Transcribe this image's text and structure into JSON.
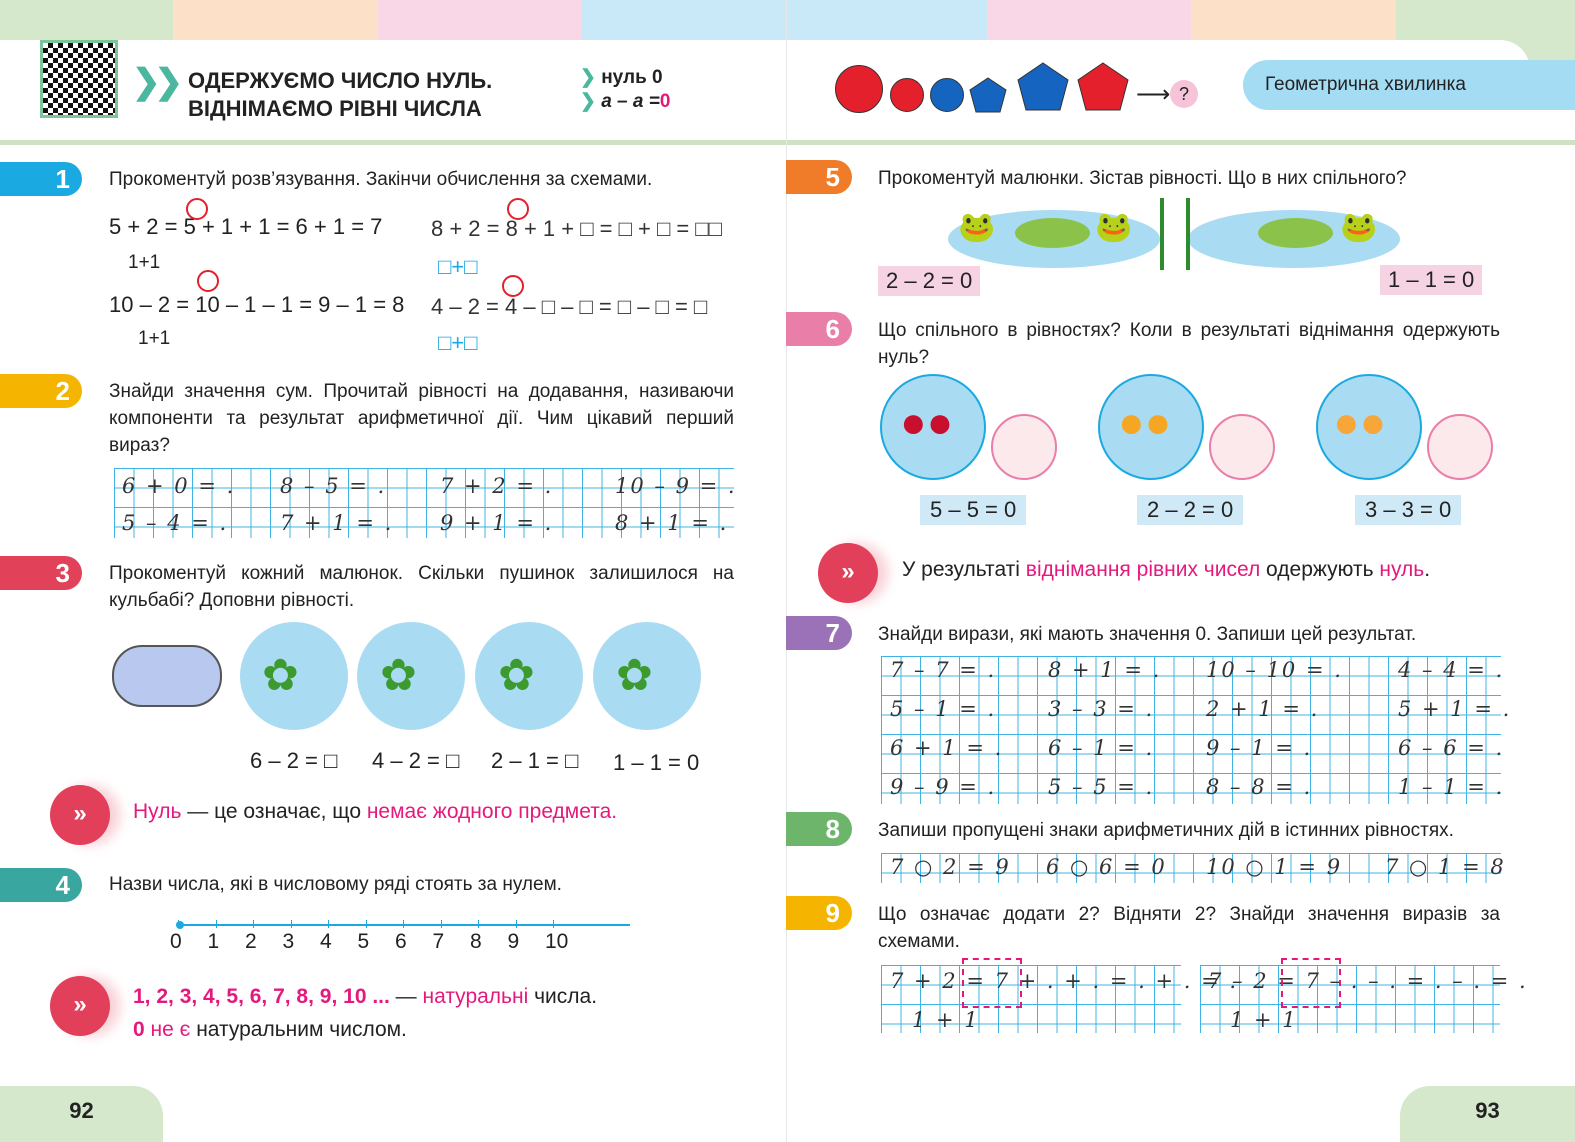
{
  "colors": {
    "magenta": "#e5197d",
    "blue": "#1aa9e1",
    "grid": "#3fb3e5",
    "red": "#e4202c"
  },
  "left_page": {
    "header": {
      "title_line1": "ОДЕРЖУЄМО ЧИСЛО НУЛЬ.",
      "title_line2": "ВІДНІМАЄМО РІВНІ ЧИСЛА",
      "key1": "нуль 0",
      "key2_prefix": "a – a =",
      "key2_value": "0"
    },
    "ex1": {
      "num": "1",
      "text": "Прокоментуй розв’язування. Закінчи обчислення за схемами.",
      "rows": [
        {
          "expr": "5 + 2 = 5 + 1 + 1 = 6 + 1 = 7",
          "split": "1+1"
        },
        {
          "expr": "10 – 2 = 10 – 1 – 1 = 9 – 1 = 8",
          "split": "1+1"
        },
        {
          "expr": "8 + 2 = 8 + 1 + □ = □ + □ = □□",
          "split": "□+□"
        },
        {
          "expr": "4 – 2 = 4 – □ – □ = □ – □ = □",
          "split": "□+□"
        }
      ]
    },
    "ex2": {
      "num": "2",
      "text": "Знайди значення сум. Прочитай рівності на додавання, називаючи компоненти та результат арифметичної дії. Чим цікавий перший вираз?",
      "items": [
        "6 + 0 = .",
        "8 – 5 = .",
        "7 + 2 = .",
        "10 – 9 = .",
        "5 – 4 = .",
        "7 + 1 = .",
        "9 + 1 = .",
        "8 + 1 = ."
      ]
    },
    "ex3": {
      "num": "3",
      "text": "Прокоментуй кожний малюнок. Скільки пушинок залишилося на кульбабі? Доповни рівності.",
      "equations": [
        "6 – 2 = □",
        "4 – 2 = □",
        "2 – 1 = □",
        "1 – 1 = 0"
      ]
    },
    "rule1": {
      "icon": "double-chevron-icon",
      "w1": "Нуль",
      "w2": " — це означає, що ",
      "w3": "немає жодного предмета."
    },
    "ex4": {
      "num": "4",
      "text": "Назви числа, які в числовому ряді стоять за нулем.",
      "numbers": [
        "0",
        "1",
        "2",
        "3",
        "4",
        "5",
        "6",
        "7",
        "8",
        "9",
        "10"
      ]
    },
    "rule2": {
      "icon": "double-chevron-icon",
      "a": "1, 2, 3, 4, 5, 6, 7, 8, 9, 10 ...",
      "b": " — ",
      "c": "натуральні",
      "d": " числа.",
      "e": "0",
      "f": " не є",
      "g": " натуральним числом."
    },
    "page_number": "92"
  },
  "right_page": {
    "header": {
      "question": "?",
      "label": "Геометрична хвилинка"
    },
    "ex5": {
      "num": "5",
      "text": "Прокоментуй малюнки. Зістав рівності. Що в них спільного?",
      "eq_left": "2 – 2 = 0",
      "eq_right": "1 – 1 = 0"
    },
    "ex6": {
      "num": "6",
      "text": "Що спільного в рівностях? Коли в результаті віднімання одержують нуль?",
      "eqs": [
        "5 – 5 = 0",
        "2 – 2 = 0",
        "3 – 3 = 0"
      ]
    },
    "rule3": {
      "icon": "double-chevron-icon",
      "a": "У результаті ",
      "b": "віднімання рівних чисел",
      "c": " одержують ",
      "d": "нуль",
      "e": "."
    },
    "ex7": {
      "num": "7",
      "text": "Знайди вирази, які мають значення 0. Запиши цей результат.",
      "items": [
        "7 – 7 = .",
        "8 + 1 = .",
        "10 – 10 = .",
        "4 – 4 = .",
        "5 – 1 = .",
        "3 – 3 = .",
        "2 + 1 = .",
        "5 + 1 = .",
        "6 + 1 = .",
        "6 – 1 = .",
        "9 – 1 = .",
        "6 – 6 = .",
        "9 – 9 = .",
        "5 – 5 = .",
        "8 – 8 = .",
        "1 – 1 = ."
      ]
    },
    "ex8": {
      "num": "8",
      "text": "Запиши пропущені знаки арифметичних дій в істинних рівностях.",
      "items": [
        "7 ○ 2 = 9",
        "6 ○ 6 = 0",
        "10 ○ 1 = 9",
        "7 ○ 1 = 8"
      ]
    },
    "ex9": {
      "num": "9",
      "text": "Що означає додати 2? Відняти 2? Знайди значення виразів за схемами.",
      "schemes": [
        {
          "expr": "7 + 2 = 7 + . + . = . + . = .",
          "split": "1 + 1"
        },
        {
          "expr": "7 – 2 = 7 – . – . = . – . = .",
          "split": "1 + 1"
        }
      ]
    },
    "page_number": "93"
  }
}
